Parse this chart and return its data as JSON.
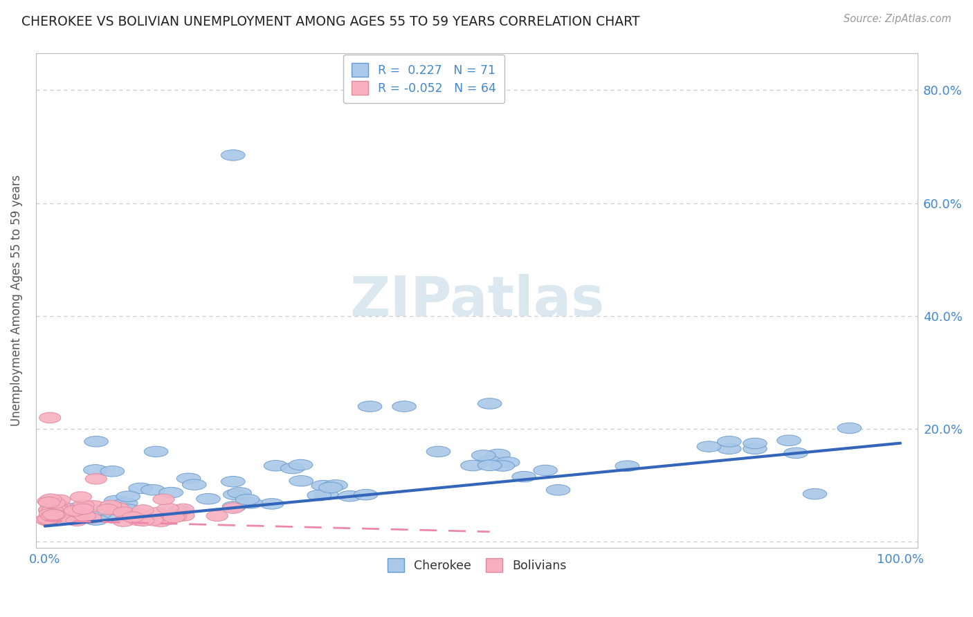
{
  "title": "CHEROKEE VS BOLIVIAN UNEMPLOYMENT AMONG AGES 55 TO 59 YEARS CORRELATION CHART",
  "source": "Source: ZipAtlas.com",
  "ylabel": "Unemployment Among Ages 55 to 59 years",
  "xlim": [
    -0.01,
    1.02
  ],
  "ylim": [
    -0.01,
    0.865
  ],
  "ytick_positions": [
    0.0,
    0.2,
    0.4,
    0.6,
    0.8
  ],
  "ytick_labels": [
    "",
    "20.0%",
    "40.0%",
    "60.0%",
    "80.0%"
  ],
  "cherokee_R": 0.227,
  "cherokee_N": 71,
  "bolivian_R": -0.052,
  "bolivian_N": 64,
  "cherokee_color": "#aac8e8",
  "cherokee_edge_color": "#6699cc",
  "bolivian_color": "#f8b0c0",
  "bolivian_edge_color": "#dd8899",
  "trend_cherokee_color": "#3366bb",
  "trend_bolivian_color": "#ee88aa",
  "background_color": "#ffffff",
  "grid_color": "#c8c8d0",
  "tick_label_color": "#4488cc",
  "watermark_color": "#dce8f0",
  "cherokee_trend_x": [
    0.0,
    1.0
  ],
  "cherokee_trend_y": [
    0.028,
    0.175
  ],
  "bolivian_trend_x": [
    0.0,
    0.52
  ],
  "bolivian_trend_y": [
    0.038,
    0.018
  ]
}
